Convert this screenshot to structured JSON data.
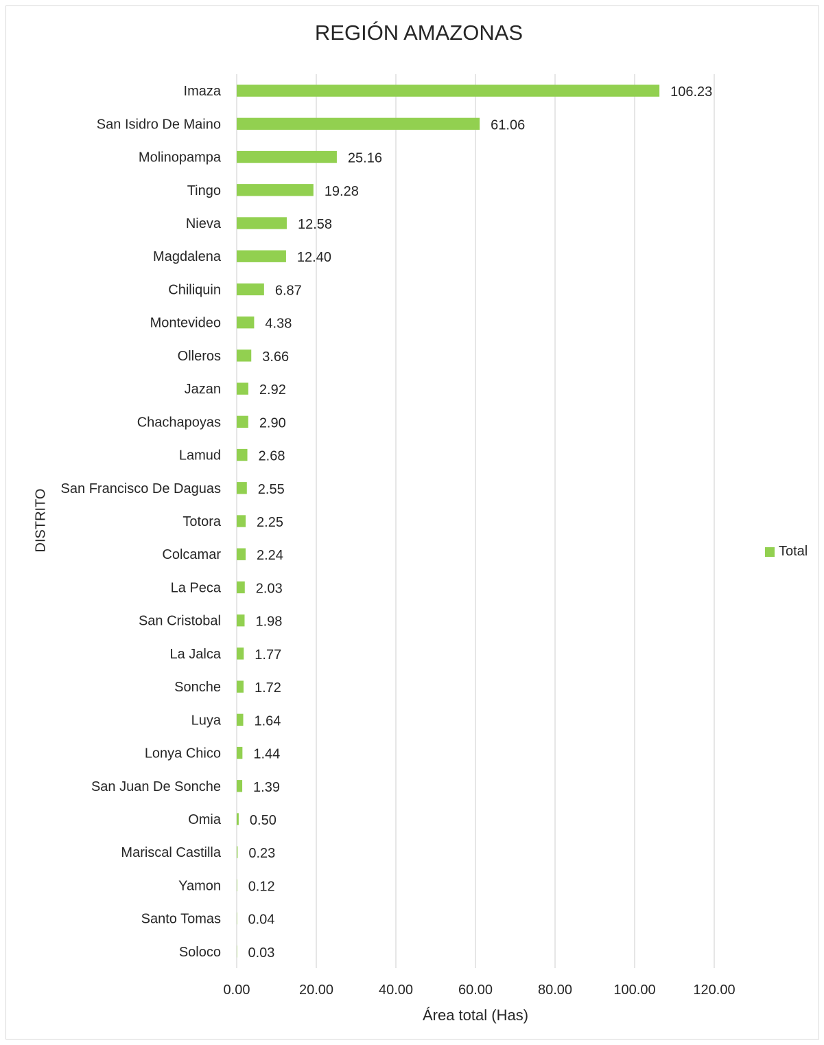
{
  "chart_data": {
    "type": "bar",
    "orientation": "horizontal",
    "title": "REGIÓN AMAZONAS",
    "xlabel": "Área total (Has)",
    "ylabel": "DISTRITO",
    "xlim": [
      0,
      120
    ],
    "x_ticks": [
      "0.00",
      "20.00",
      "40.00",
      "60.00",
      "80.00",
      "100.00",
      "120.00"
    ],
    "grid": "vertical",
    "legend_position": "right",
    "bar_color": "#92D050",
    "categories": [
      "Imaza",
      "San Isidro De Maino",
      "Molinopampa",
      "Tingo",
      "Nieva",
      "Magdalena",
      "Chiliquin",
      "Montevideo",
      "Olleros",
      "Jazan",
      "Chachapoyas",
      "Lamud",
      "San Francisco De Daguas",
      "Totora",
      "Colcamar",
      "La Peca",
      "San Cristobal",
      "La Jalca",
      "Sonche",
      "Luya",
      "Lonya Chico",
      "San Juan De Sonche",
      "Omia",
      "Mariscal Castilla",
      "Yamon",
      "Santo Tomas",
      "Soloco"
    ],
    "series": [
      {
        "name": "Total",
        "values": [
          106.23,
          61.06,
          25.16,
          19.28,
          12.58,
          12.4,
          6.87,
          4.38,
          3.66,
          2.92,
          2.9,
          2.68,
          2.55,
          2.25,
          2.24,
          2.03,
          1.98,
          1.77,
          1.72,
          1.64,
          1.44,
          1.39,
          0.5,
          0.23,
          0.12,
          0.04,
          0.03
        ],
        "labels": [
          "106.23",
          "61.06",
          "25.16",
          "19.28",
          "12.58",
          "12.40",
          "6.87",
          "4.38",
          "3.66",
          "2.92",
          "2.90",
          "2.68",
          "2.55",
          "2.25",
          "2.24",
          "2.03",
          "1.98",
          "1.77",
          "1.72",
          "1.64",
          "1.44",
          "1.39",
          "0.50",
          "0.23",
          "0.12",
          "0.04",
          "0.03"
        ]
      }
    ]
  }
}
